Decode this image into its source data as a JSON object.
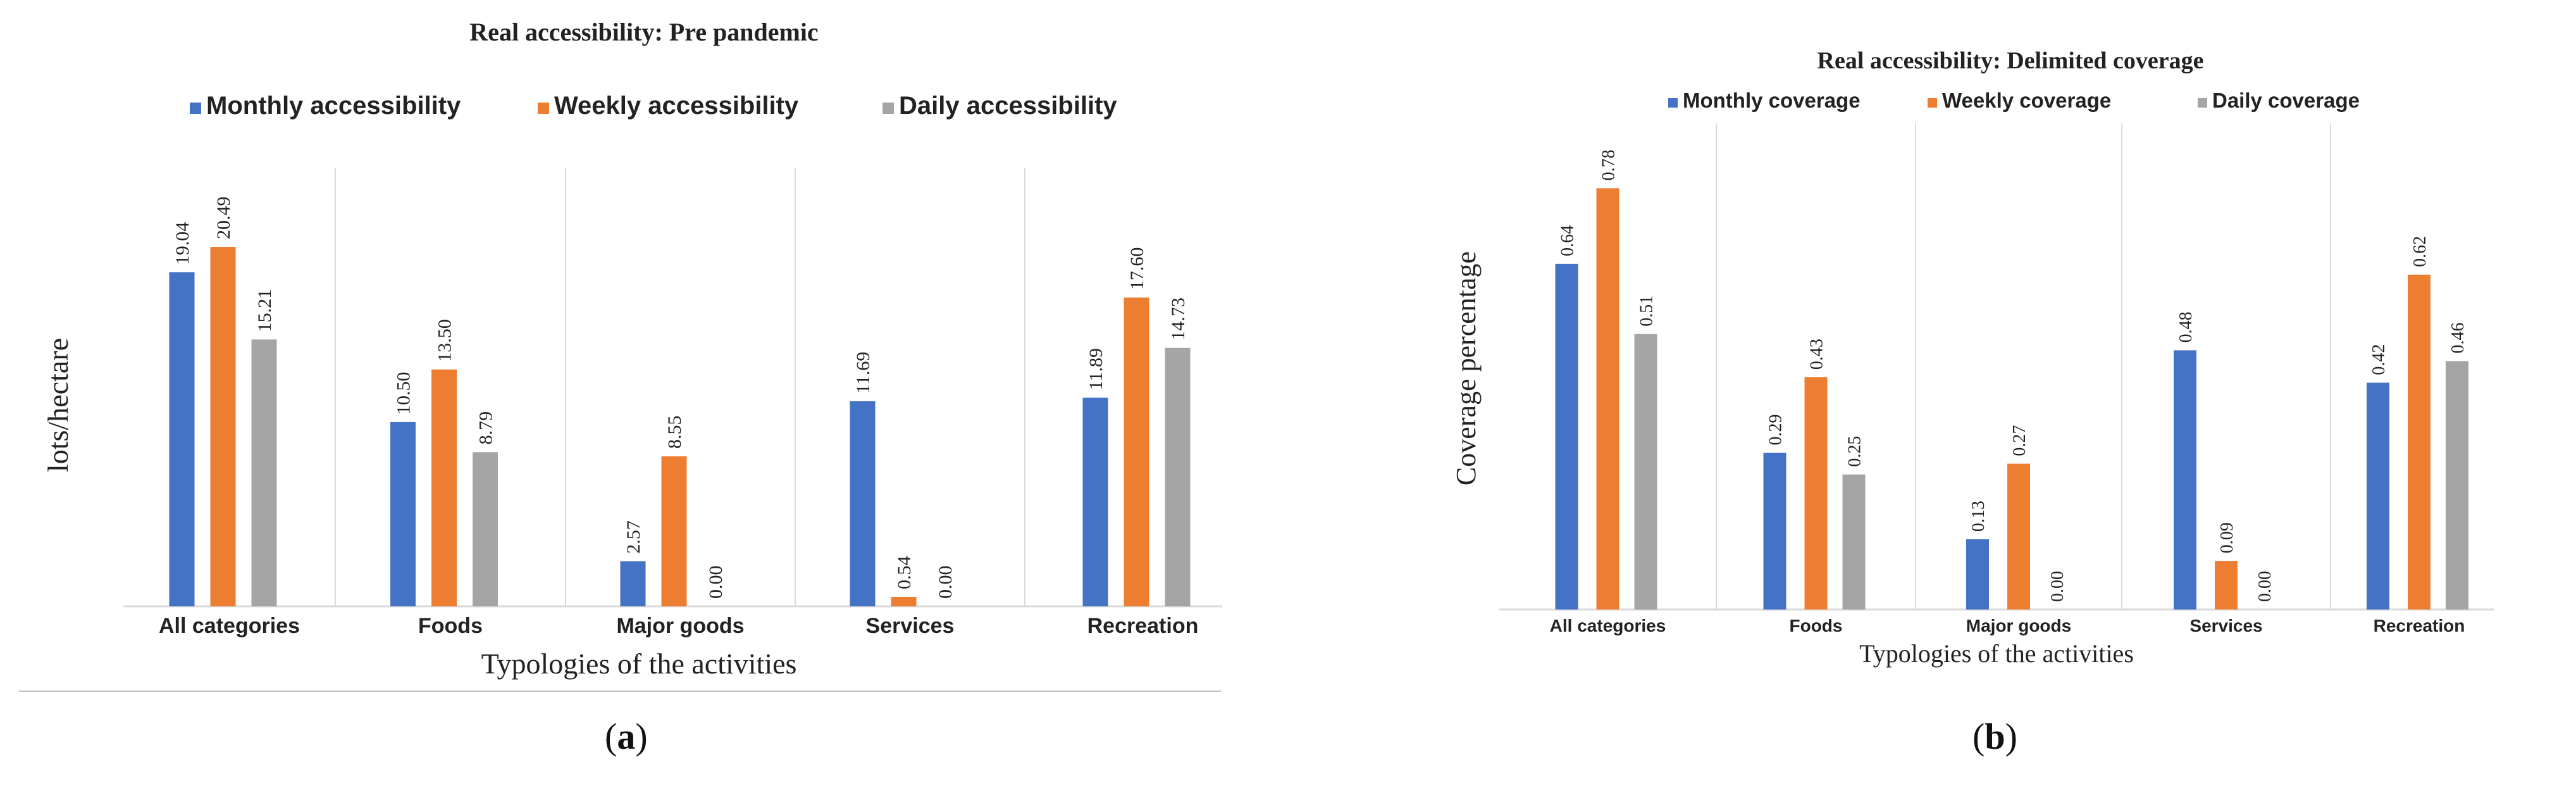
{
  "colors": {
    "monthly": "#4472C4",
    "weekly": "#ED7D31",
    "daily": "#A5A5A5",
    "grid": "#D9D9D9",
    "text": "#222222"
  },
  "captions": {
    "a": {
      "open": "(",
      "letter": "a",
      "close": ")"
    },
    "b": {
      "open": "(",
      "letter": "b",
      "close": ")"
    }
  },
  "chart_data": [
    {
      "type": "bar",
      "title": "Real accessibility: Pre pandemic",
      "xlabel": "Typologies of the activities",
      "ylabel": "lots/hectare",
      "ylim": [
        0,
        25
      ],
      "grid": false,
      "legend_position": "top",
      "categories": [
        "All categories",
        "Foods",
        "Major goods",
        "Services",
        "Recreation"
      ],
      "series": [
        {
          "name": "Monthly accessibility",
          "color_key": "monthly",
          "values": [
            19.04,
            10.5,
            2.57,
            11.69,
            11.89
          ],
          "labels": [
            "19.04",
            "10.50",
            "2.57",
            "11.69",
            "11.89"
          ]
        },
        {
          "name": "Weekly accessibility",
          "color_key": "weekly",
          "values": [
            20.49,
            13.5,
            8.55,
            0.54,
            17.6
          ],
          "labels": [
            "20.49",
            "13.50",
            "8.55",
            "0.54",
            "17.60"
          ]
        },
        {
          "name": "Daily accessibility",
          "color_key": "daily",
          "values": [
            15.21,
            8.79,
            0.0,
            0.0,
            14.73
          ],
          "labels": [
            "15.21",
            "8.79",
            "0.00",
            "0.00",
            "14.73"
          ]
        }
      ]
    },
    {
      "type": "bar",
      "title": "Real accessibility: Delimited coverage",
      "xlabel": "Typologies of the activities",
      "ylabel": "Coverage percentage",
      "ylim": [
        0,
        0.9
      ],
      "grid": false,
      "legend_position": "top",
      "categories": [
        "All categories",
        "Foods",
        "Major goods",
        "Services",
        "Recreation"
      ],
      "series": [
        {
          "name": "Monthly coverage",
          "color_key": "monthly",
          "values": [
            0.64,
            0.29,
            0.13,
            0.48,
            0.42
          ],
          "labels": [
            "0.64",
            "0.29",
            "0.13",
            "0.48",
            "0.42"
          ]
        },
        {
          "name": "Weekly coverage",
          "color_key": "weekly",
          "values": [
            0.78,
            0.43,
            0.27,
            0.09,
            0.62
          ],
          "labels": [
            "0.78",
            "0.43",
            "0.27",
            "0.09",
            "0.62"
          ]
        },
        {
          "name": "Daily  coverage",
          "color_key": "daily",
          "values": [
            0.51,
            0.25,
            0.0,
            0.0,
            0.46
          ],
          "labels": [
            "0.51",
            "0.25",
            "0.00",
            "0.00",
            "0.46"
          ]
        }
      ]
    }
  ]
}
